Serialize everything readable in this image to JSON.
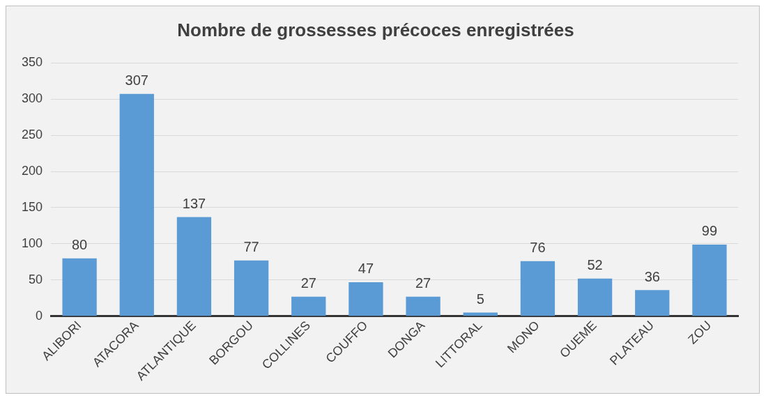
{
  "chart_data": {
    "type": "bar",
    "title": "Nombre de grossesses précoces enregistrées",
    "categories": [
      "ALIBORI",
      "ATACORA",
      "ATLANTIQUE",
      "BORGOU",
      "COLLINES",
      "COUFFO",
      "DONGA",
      "LITTORAL",
      "MONO",
      "OUEME",
      "PLATEAU",
      "ZOU"
    ],
    "values": [
      80,
      307,
      137,
      77,
      27,
      47,
      27,
      5,
      76,
      52,
      36,
      99
    ],
    "color": "#5b9bd5",
    "ylim": [
      0,
      350
    ],
    "yticks": [
      0,
      50,
      100,
      150,
      200,
      250,
      300,
      350
    ],
    "grid": "y",
    "legend": false,
    "data_labels": true
  }
}
